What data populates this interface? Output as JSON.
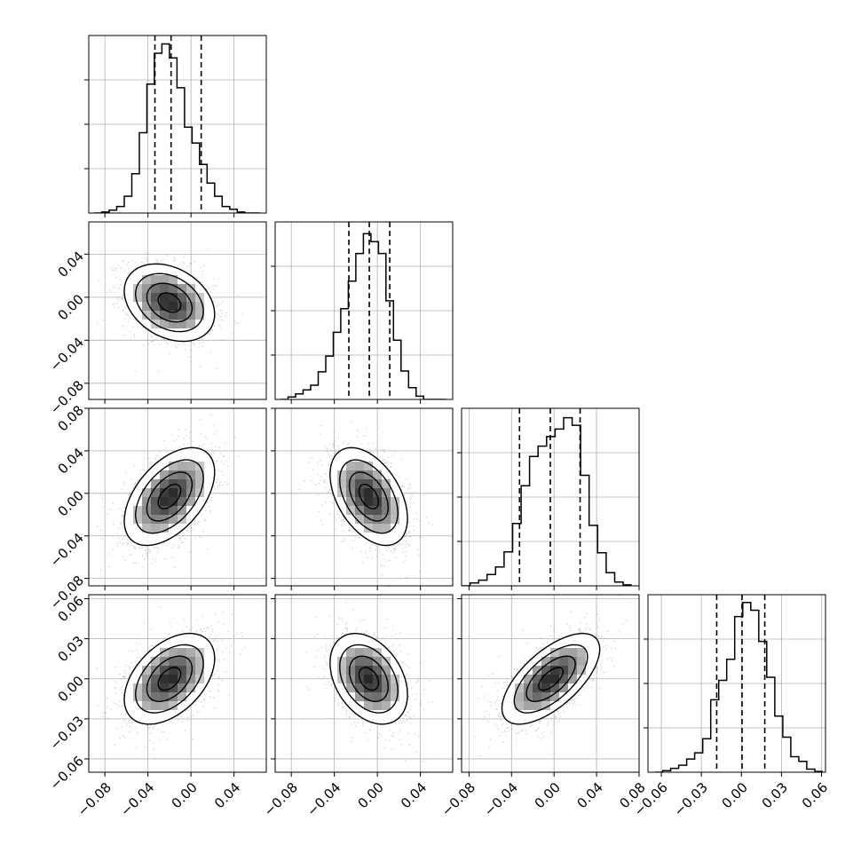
{
  "chart_data": {
    "type": "corner",
    "parameters": 4,
    "axis_ranges": [
      [
        -0.095,
        0.07
      ],
      [
        -0.095,
        0.07
      ],
      [
        -0.087,
        0.08
      ],
      [
        -0.07,
        0.063
      ]
    ],
    "x_tick_values": [
      [
        -0.08,
        -0.04,
        0.0,
        0.04
      ],
      [
        -0.08,
        -0.04,
        0.0,
        0.04
      ],
      [
        -0.08,
        -0.04,
        0.0,
        0.04,
        0.08
      ],
      [
        -0.06,
        -0.03,
        0.0,
        0.03,
        0.06
      ]
    ],
    "x_tick_labels": [
      [
        "−0.08",
        "−0.04",
        "0.00",
        "0.04"
      ],
      [
        "−0.08",
        "−0.04",
        "0.00",
        "0.04"
      ],
      [
        "−0.08",
        "−0.04",
        "0.00",
        "0.04",
        "0.08"
      ],
      [
        "−0.06",
        "−0.03",
        "0.00",
        "0.03",
        "0.06"
      ]
    ],
    "y_tick_values": [
      [],
      [
        -0.08,
        -0.04,
        0.0,
        0.04
      ],
      [
        -0.08,
        -0.04,
        0.0,
        0.04,
        0.08
      ],
      [
        -0.06,
        -0.03,
        0.0,
        0.03,
        0.06
      ]
    ],
    "y_tick_labels": [
      [],
      [
        "−0.08",
        "−0.04",
        "0.00",
        "0.04"
      ],
      [
        "−0.08",
        "−0.04",
        "0.00",
        "0.04",
        "0.08"
      ],
      [
        "−0.06",
        "−0.03",
        "0.00",
        "0.03",
        "0.06"
      ]
    ],
    "histograms": [
      {
        "bin_edges": [
          -0.09,
          -0.083,
          -0.076,
          -0.069,
          -0.062,
          -0.055,
          -0.048,
          -0.041,
          -0.034,
          -0.027,
          -0.02,
          -0.013,
          -0.006,
          0.001,
          0.008,
          0.015,
          0.022,
          0.029,
          0.036,
          0.043,
          0.05,
          0.057,
          0.064
        ],
        "counts": [
          0,
          1,
          3,
          7,
          18,
          42,
          86,
          138,
          171,
          181,
          166,
          134,
          92,
          75,
          52,
          32,
          18,
          7,
          4,
          1,
          0,
          0
        ],
        "quantiles": [
          -0.0335,
          -0.0185,
          0.0095
        ],
        "ylim": [
          0,
          190
        ]
      },
      {
        "bin_edges": [
          -0.09,
          -0.083,
          -0.076,
          -0.069,
          -0.062,
          -0.055,
          -0.048,
          -0.041,
          -0.034,
          -0.027,
          -0.02,
          -0.013,
          -0.006,
          0.001,
          0.008,
          0.015,
          0.022,
          0.029,
          0.036,
          0.043,
          0.05,
          0.057,
          0.064
        ],
        "counts": [
          0,
          3,
          7,
          12,
          18,
          35,
          55,
          85,
          115,
          150,
          185,
          210,
          200,
          185,
          125,
          75,
          36,
          15,
          4,
          0,
          0,
          0
        ],
        "quantiles": [
          -0.0265,
          -0.0075,
          0.0115
        ],
        "ylim": [
          0,
          225
        ]
      },
      {
        "bin_edges": [
          -0.087,
          -0.079,
          -0.071,
          -0.063,
          -0.055,
          -0.047,
          -0.039,
          -0.031,
          -0.023,
          -0.015,
          -0.007,
          0.001,
          0.009,
          0.017,
          0.025,
          0.033,
          0.041,
          0.049,
          0.057,
          0.065,
          0.073
        ],
        "counts": [
          0,
          3,
          6,
          12,
          20,
          36,
          66,
          106,
          137,
          148,
          158,
          166,
          178,
          170,
          117,
          64,
          35,
          14,
          4,
          1
        ],
        "quantiles": [
          -0.0325,
          -0.0035,
          0.0245
        ],
        "ylim": [
          0,
          188
        ]
      },
      {
        "bin_edges": [
          -0.065,
          -0.059,
          -0.053,
          -0.047,
          -0.041,
          -0.035,
          -0.029,
          -0.023,
          -0.017,
          -0.011,
          -0.005,
          0.001,
          0.007,
          0.013,
          0.019,
          0.025,
          0.031,
          0.037,
          0.043,
          0.049,
          0.055,
          0.061
        ],
        "counts": [
          0,
          2,
          5,
          9,
          17,
          25,
          43,
          93,
          118,
          145,
          200,
          218,
          208,
          168,
          122,
          72,
          45,
          20,
          14,
          4,
          1
        ],
        "quantiles": [
          -0.0185,
          0.0005,
          0.0175
        ],
        "ylim": [
          0,
          228
        ]
      }
    ],
    "scatter_panels": [
      {
        "row": 1,
        "col": 0,
        "mean": [
          -0.02,
          -0.005
        ],
        "sd": [
          0.021,
          0.018
        ],
        "corr": -0.3
      },
      {
        "row": 2,
        "col": 0,
        "mean": [
          -0.02,
          -0.003
        ],
        "sd": [
          0.021,
          0.023
        ],
        "corr": 0.5
      },
      {
        "row": 2,
        "col": 1,
        "mean": [
          -0.008,
          -0.003
        ],
        "sd": [
          0.018,
          0.023
        ],
        "corr": -0.45
      },
      {
        "row": 3,
        "col": 0,
        "mean": [
          -0.02,
          0.0
        ],
        "sd": [
          0.021,
          0.017
        ],
        "corr": 0.45
      },
      {
        "row": 3,
        "col": 1,
        "mean": [
          -0.008,
          0.0
        ],
        "sd": [
          0.018,
          0.017
        ],
        "corr": -0.35
      },
      {
        "row": 3,
        "col": 2,
        "mean": [
          -0.003,
          0.0
        ],
        "sd": [
          0.023,
          0.017
        ],
        "corr": 0.65
      }
    ],
    "grid": true,
    "legend": "none"
  }
}
